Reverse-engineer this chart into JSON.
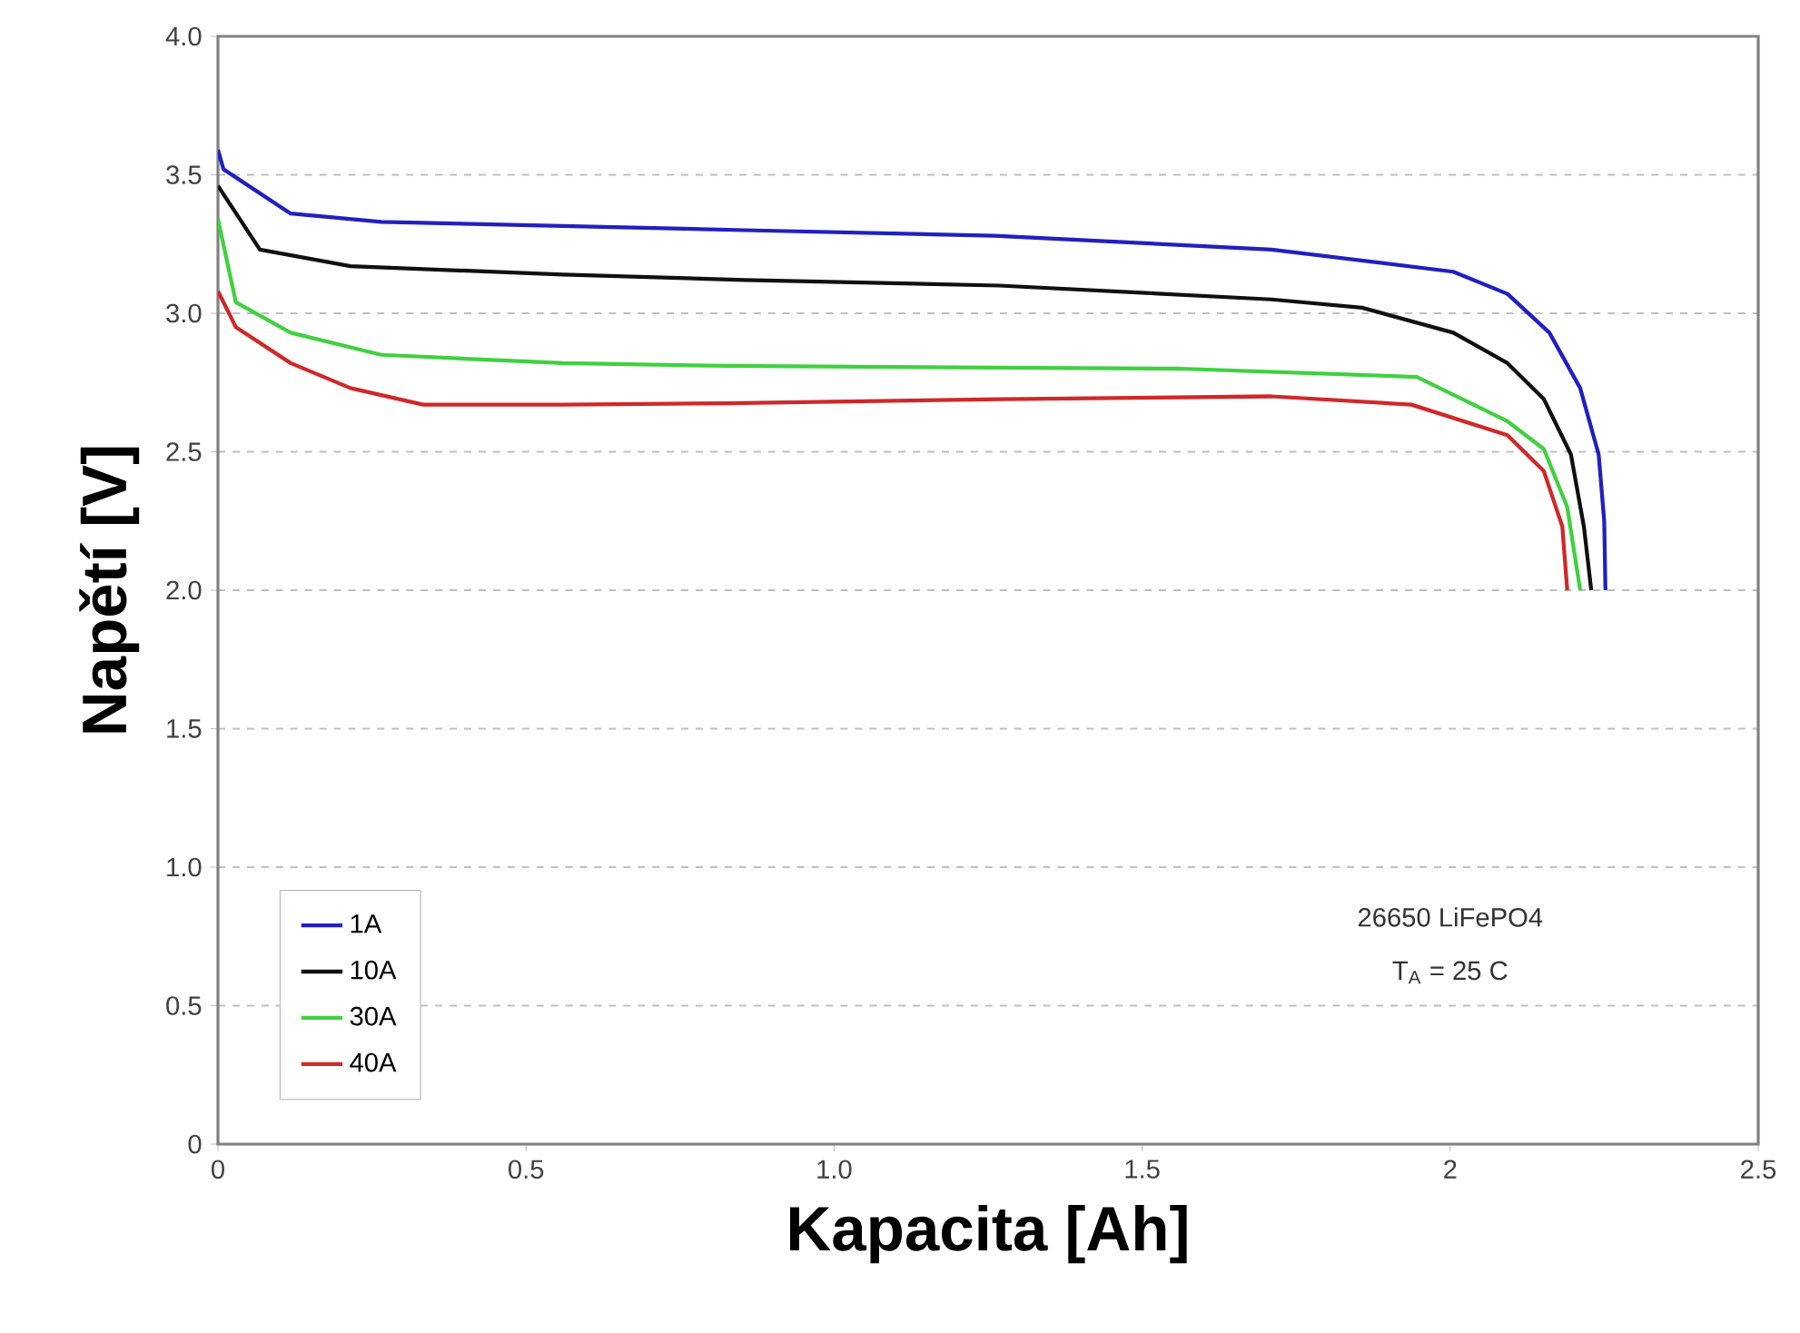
{
  "chart_data": {
    "type": "line",
    "xlabel": "Kapacita [Ah]",
    "ylabel": "Napětí [V]",
    "xlim": [
      0,
      2.5
    ],
    "ylim": [
      0,
      4
    ],
    "xticks": [
      0,
      0.5,
      {
        "value": 1,
        "label": "1.0"
      },
      1.5,
      2,
      2.5
    ],
    "yticks": [
      0,
      0.5,
      {
        "value": 1,
        "label": "1.0"
      },
      1.5,
      {
        "value": 2,
        "label": "2.0"
      },
      2.5,
      {
        "value": 3,
        "label": "3.0"
      },
      3.5,
      {
        "value": 4,
        "label": "4.0"
      }
    ],
    "grid": "y",
    "legend": "bottom left",
    "marker": "none",
    "line_style": "solid",
    "annotations": [
      "26650 LiFePO4",
      "T$_{A}$ = 25 C"
    ],
    "series": [
      {
        "name": "1A",
        "color": "#2020c0",
        "x": [
          0,
          0.009,
          0.118,
          0.265,
          0.855,
          1.26,
          1.71,
          2.005,
          2.093,
          2.161,
          2.211,
          2.241,
          2.25,
          2.252
        ],
        "values": [
          3.59,
          3.52,
          3.36,
          3.33,
          3.3,
          3.28,
          3.23,
          3.15,
          3.07,
          2.93,
          2.73,
          2.49,
          2.25,
          2.0
        ]
      },
      {
        "name": "10A",
        "color": "#101010",
        "x": [
          0,
          0.068,
          0.215,
          0.56,
          0.855,
          1.268,
          1.71,
          1.857,
          2.005,
          2.093,
          2.152,
          2.196,
          2.217,
          2.229
        ],
        "values": [
          3.46,
          3.23,
          3.17,
          3.14,
          3.12,
          3.1,
          3.05,
          3.02,
          2.93,
          2.82,
          2.69,
          2.49,
          2.23,
          2.0
        ]
      },
      {
        "name": "30A",
        "color": "#40d040",
        "x": [
          0,
          0.029,
          0.118,
          0.265,
          0.56,
          0.825,
          1.5625,
          1.946,
          2.093,
          2.152,
          2.19,
          2.211
        ],
        "values": [
          3.34,
          3.04,
          2.93,
          2.85,
          2.82,
          2.81,
          2.8,
          2.77,
          2.61,
          2.51,
          2.3,
          2.0
        ]
      },
      {
        "name": "40A",
        "color": "#d02828",
        "x": [
          0,
          0.029,
          0.118,
          0.215,
          0.333,
          0.56,
          0.825,
          1.268,
          1.71,
          1.937,
          2.093,
          2.152,
          2.182,
          2.19
        ],
        "values": [
          3.08,
          2.95,
          2.82,
          2.73,
          2.67,
          2.67,
          2.675,
          2.69,
          2.7,
          2.67,
          2.56,
          2.43,
          2.23,
          2.0
        ]
      }
    ]
  }
}
